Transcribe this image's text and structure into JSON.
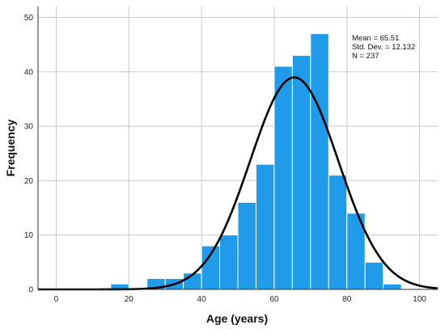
{
  "chart_data": {
    "type": "bar",
    "chart_kind": "histogram",
    "xlabel": "Age (years)",
    "ylabel": "Frequency",
    "xlim": [
      -5,
      105
    ],
    "ylim": [
      0,
      52
    ],
    "x_ticks": [
      0,
      20,
      40,
      60,
      80,
      100
    ],
    "y_ticks": [
      0,
      10,
      20,
      30,
      40,
      50
    ],
    "grid": true,
    "bin_width": 5,
    "bins": [
      {
        "start": 15,
        "end": 20,
        "count": 1
      },
      {
        "start": 20,
        "end": 25,
        "count": 0
      },
      {
        "start": 25,
        "end": 30,
        "count": 2
      },
      {
        "start": 30,
        "end": 35,
        "count": 2
      },
      {
        "start": 35,
        "end": 40,
        "count": 3
      },
      {
        "start": 40,
        "end": 45,
        "count": 8
      },
      {
        "start": 45,
        "end": 50,
        "count": 10
      },
      {
        "start": 50,
        "end": 55,
        "count": 16
      },
      {
        "start": 55,
        "end": 60,
        "count": 23
      },
      {
        "start": 60,
        "end": 65,
        "count": 41
      },
      {
        "start": 65,
        "end": 70,
        "count": 43
      },
      {
        "start": 70,
        "end": 75,
        "count": 47
      },
      {
        "start": 75,
        "end": 80,
        "count": 21
      },
      {
        "start": 80,
        "end": 85,
        "count": 14
      },
      {
        "start": 85,
        "end": 90,
        "count": 5
      },
      {
        "start": 90,
        "end": 95,
        "count": 1
      }
    ],
    "normal_curve": {
      "mean": 65.51,
      "sd": 12.132,
      "n": 237
    },
    "stats_labels": [
      "Mean = 65.51",
      "Std. Dev. = 12.132",
      "N = 237"
    ],
    "legend_position": "top-right",
    "bar_color": "#1f9bea",
    "curve_color": "#000000"
  }
}
